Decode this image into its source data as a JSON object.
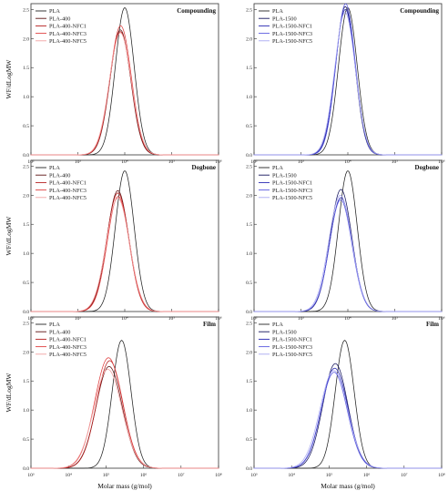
{
  "figure": {
    "x_axis_label": "Molar mass (g/mol)",
    "y_axis_label": "WF/dLogMW"
  },
  "chart_data": [
    {
      "type": "line",
      "title": "Compounding",
      "xscale": "log",
      "xlim": [
        100,
        100000000
      ],
      "ylim": [
        0,
        2.6
      ],
      "xticks": [
        "10²",
        "10³",
        "10⁴",
        "10⁵",
        "10⁶"
      ],
      "yticks": [
        "0.0",
        "0.5",
        "1.0",
        "1.5",
        "2.0",
        "2.5"
      ],
      "show_y_label": true,
      "show_x_label": false,
      "legend_position": "top-left",
      "series": [
        {
          "name": "PLA",
          "color": "#222222",
          "mu": 5.0,
          "sigma": 0.3,
          "amp": 2.53
        },
        {
          "name": "PLA-400",
          "color": "#5c1111",
          "mu": 4.86,
          "sigma": 0.33,
          "amp": 2.15
        },
        {
          "name": "PLA-400-NFC1",
          "color": "#b21a1a",
          "mu": 4.86,
          "sigma": 0.34,
          "amp": 2.12
        },
        {
          "name": "PLA-400-NFC3",
          "color": "#e04040",
          "mu": 4.87,
          "sigma": 0.34,
          "amp": 2.22
        },
        {
          "name": "PLA-400-NFC5",
          "color": "#f2a0a0",
          "mu": 4.86,
          "sigma": 0.35,
          "amp": 2.1
        }
      ]
    },
    {
      "type": "line",
      "title": "Compounding",
      "xscale": "log",
      "xlim": [
        100,
        100000000
      ],
      "ylim": [
        0,
        2.6
      ],
      "xticks": [
        "10²",
        "10³",
        "10⁴",
        "10⁵",
        "10⁶"
      ],
      "yticks": [
        "0.0",
        "0.5",
        "1.0",
        "1.5",
        "2.0",
        "2.5"
      ],
      "show_y_label": false,
      "show_x_label": false,
      "legend_position": "top-left",
      "series": [
        {
          "name": "PLA",
          "color": "#222222",
          "mu": 5.0,
          "sigma": 0.3,
          "amp": 2.53
        },
        {
          "name": "PLA-1500",
          "color": "#14145c",
          "mu": 4.92,
          "sigma": 0.31,
          "amp": 2.55
        },
        {
          "name": "PLA-1500-NFC1",
          "color": "#2323b0",
          "mu": 4.92,
          "sigma": 0.32,
          "amp": 2.5
        },
        {
          "name": "PLA-1500-NFC3",
          "color": "#5a5ae0",
          "mu": 4.93,
          "sigma": 0.31,
          "amp": 2.6
        },
        {
          "name": "PLA-1500-NFC5",
          "color": "#a8a8f2",
          "mu": 4.91,
          "sigma": 0.33,
          "amp": 2.45
        }
      ]
    },
    {
      "type": "line",
      "title": "Dogbone",
      "xscale": "log",
      "xlim": [
        100,
        100000000
      ],
      "ylim": [
        0,
        2.6
      ],
      "xticks": [
        "10²",
        "10³",
        "10⁴",
        "10⁵",
        "10⁶"
      ],
      "yticks": [
        "0.0",
        "0.5",
        "1.0",
        "1.5",
        "2.0",
        "2.5"
      ],
      "show_y_label": true,
      "show_x_label": false,
      "legend_position": "top-left",
      "series": [
        {
          "name": "PLA",
          "color": "#222222",
          "mu": 5.0,
          "sigma": 0.3,
          "amp": 2.42
        },
        {
          "name": "PLA-400",
          "color": "#5c1111",
          "mu": 4.78,
          "sigma": 0.35,
          "amp": 2.08
        },
        {
          "name": "PLA-400-NFC1",
          "color": "#b21a1a",
          "mu": 4.78,
          "sigma": 0.36,
          "amp": 2.04
        },
        {
          "name": "PLA-400-NFC3",
          "color": "#e04040",
          "mu": 4.79,
          "sigma": 0.35,
          "amp": 1.98
        },
        {
          "name": "PLA-400-NFC5",
          "color": "#f2a0a0",
          "mu": 4.78,
          "sigma": 0.37,
          "amp": 1.95
        }
      ]
    },
    {
      "type": "line",
      "title": "Dogbone",
      "xscale": "log",
      "xlim": [
        100,
        100000000
      ],
      "ylim": [
        0,
        2.6
      ],
      "xticks": [
        "10²",
        "10³",
        "10⁴",
        "10⁵",
        "10⁶"
      ],
      "yticks": [
        "0.0",
        "0.5",
        "1.0",
        "1.5",
        "2.0",
        "2.5"
      ],
      "show_y_label": false,
      "show_x_label": false,
      "legend_position": "top-left",
      "series": [
        {
          "name": "PLA",
          "color": "#222222",
          "mu": 5.0,
          "sigma": 0.3,
          "amp": 2.42
        },
        {
          "name": "PLA-1500",
          "color": "#14145c",
          "mu": 4.78,
          "sigma": 0.35,
          "amp": 2.1
        },
        {
          "name": "PLA-1500-NFC1",
          "color": "#2323b0",
          "mu": 4.78,
          "sigma": 0.36,
          "amp": 1.96
        },
        {
          "name": "PLA-1500-NFC3",
          "color": "#5a5ae0",
          "mu": 4.77,
          "sigma": 0.36,
          "amp": 1.92
        },
        {
          "name": "PLA-1500-NFC5",
          "color": "#a8a8f2",
          "mu": 4.76,
          "sigma": 0.37,
          "amp": 2.0
        }
      ]
    },
    {
      "type": "line",
      "title": "Film",
      "xscale": "log",
      "xlim": [
        100,
        100000000
      ],
      "ylim": [
        0,
        2.6
      ],
      "xticks": [
        "10³",
        "10⁴",
        "10⁵",
        "10⁶",
        "10⁷",
        "10⁸"
      ],
      "yticks": [
        "0.0",
        "0.5",
        "1.0",
        "1.5",
        "2.0",
        "2.5"
      ],
      "show_y_label": true,
      "show_x_label": true,
      "legend_position": "top-left",
      "series": [
        {
          "name": "PLA",
          "color": "#222222",
          "mu": 4.9,
          "sigma": 0.3,
          "amp": 2.2
        },
        {
          "name": "PLA-400",
          "color": "#5c1111",
          "mu": 4.5,
          "sigma": 0.42,
          "amp": 1.75
        },
        {
          "name": "PLA-400-NFC1",
          "color": "#b21a1a",
          "mu": 4.52,
          "sigma": 0.42,
          "amp": 1.85
        },
        {
          "name": "PLA-400-NFC3",
          "color": "#e04040",
          "mu": 4.48,
          "sigma": 0.44,
          "amp": 1.9
        },
        {
          "name": "PLA-400-NFC5",
          "color": "#f2a0a0",
          "mu": 4.46,
          "sigma": 0.45,
          "amp": 1.7
        }
      ]
    },
    {
      "type": "line",
      "title": "Film",
      "xscale": "log",
      "xlim": [
        100,
        100000000
      ],
      "ylim": [
        0,
        2.6
      ],
      "xticks": [
        "10³",
        "10⁴",
        "10⁵",
        "10⁶",
        "10⁷",
        "10⁸"
      ],
      "yticks": [
        "0.0",
        "0.5",
        "1.0",
        "1.5",
        "2.0",
        "2.5"
      ],
      "show_y_label": false,
      "show_x_label": true,
      "legend_position": "top-left",
      "series": [
        {
          "name": "PLA",
          "color": "#222222",
          "mu": 4.9,
          "sigma": 0.3,
          "amp": 2.2
        },
        {
          "name": "PLA-1500",
          "color": "#14145c",
          "mu": 4.6,
          "sigma": 0.4,
          "amp": 1.8
        },
        {
          "name": "PLA-1500-NFC1",
          "color": "#2323b0",
          "mu": 4.58,
          "sigma": 0.42,
          "amp": 1.72
        },
        {
          "name": "PLA-1500-NFC3",
          "color": "#5a5ae0",
          "mu": 4.56,
          "sigma": 0.42,
          "amp": 1.65
        },
        {
          "name": "PLA-1500-NFC5",
          "color": "#a8a8f2",
          "mu": 4.55,
          "sigma": 0.44,
          "amp": 1.68
        }
      ]
    }
  ]
}
